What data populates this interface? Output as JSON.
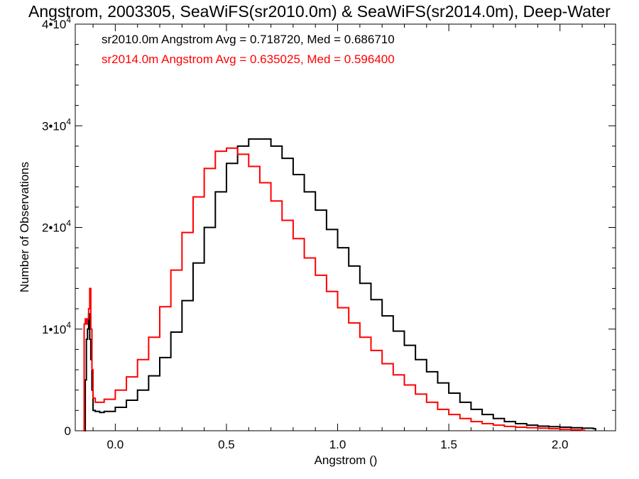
{
  "chart_data": {
    "type": "line",
    "title": "Angstrom, 2003305, SeaWiFS(sr2010.0m) & SeaWiFS(sr2014.0m), Deep-Water",
    "xlabel": "Angstrom ()",
    "ylabel": "Number of Observations",
    "xlim": [
      -0.18,
      2.25
    ],
    "ylim": [
      0,
      40000
    ],
    "x_ticks": [
      {
        "value": 0.0,
        "label": "0.0"
      },
      {
        "value": 0.5,
        "label": "0.5"
      },
      {
        "value": 1.0,
        "label": "1.0"
      },
      {
        "value": 1.5,
        "label": "1.5"
      },
      {
        "value": 2.0,
        "label": "2.0"
      }
    ],
    "y_ticks": [
      {
        "value": 0,
        "mantissa": "0",
        "exponent": ""
      },
      {
        "value": 10000,
        "mantissa": "1•10",
        "exponent": "4"
      },
      {
        "value": 20000,
        "mantissa": "2•10",
        "exponent": "4"
      },
      {
        "value": 30000,
        "mantissa": "3•10",
        "exponent": "4"
      },
      {
        "value": 40000,
        "mantissa": "4•10",
        "exponent": "4"
      }
    ],
    "grid": false,
    "legend_position": "top-left",
    "annotations": [
      {
        "text": "sr2010.0m Angstrom Avg = 0.718720, Med = 0.686710",
        "color": "#000000"
      },
      {
        "text": "sr2014.0m Angstrom Avg = 0.635025, Med = 0.596400",
        "color": "#ff0000"
      }
    ],
    "series": [
      {
        "color": "#000000",
        "points": [
          [
            -0.14,
            0
          ],
          [
            -0.135,
            5000
          ],
          [
            -0.13,
            9000
          ],
          [
            -0.125,
            10000
          ],
          [
            -0.12,
            11500
          ],
          [
            -0.115,
            9000
          ],
          [
            -0.11,
            7000
          ],
          [
            -0.105,
            4000
          ],
          [
            -0.1,
            2000
          ],
          [
            -0.09,
            1900
          ],
          [
            -0.07,
            1800
          ],
          [
            -0.05,
            1900
          ],
          [
            0.0,
            2300
          ],
          [
            0.05,
            3000
          ],
          [
            0.1,
            4000
          ],
          [
            0.15,
            5400
          ],
          [
            0.2,
            7200
          ],
          [
            0.25,
            9700
          ],
          [
            0.3,
            12800
          ],
          [
            0.35,
            16500
          ],
          [
            0.4,
            20000
          ],
          [
            0.45,
            23500
          ],
          [
            0.5,
            26300
          ],
          [
            0.55,
            28000
          ],
          [
            0.6,
            28700
          ],
          [
            0.65,
            28700
          ],
          [
            0.7,
            28000
          ],
          [
            0.75,
            26800
          ],
          [
            0.8,
            25200
          ],
          [
            0.85,
            23500
          ],
          [
            0.9,
            21700
          ],
          [
            0.95,
            19800
          ],
          [
            1.0,
            18000
          ],
          [
            1.05,
            16200
          ],
          [
            1.1,
            14500
          ],
          [
            1.15,
            12900
          ],
          [
            1.2,
            11300
          ],
          [
            1.25,
            9800
          ],
          [
            1.3,
            8400
          ],
          [
            1.35,
            7000
          ],
          [
            1.4,
            5800
          ],
          [
            1.45,
            4700
          ],
          [
            1.5,
            3700
          ],
          [
            1.55,
            2800
          ],
          [
            1.6,
            2100
          ],
          [
            1.65,
            1600
          ],
          [
            1.7,
            1200
          ],
          [
            1.75,
            900
          ],
          [
            1.8,
            700
          ],
          [
            1.85,
            550
          ],
          [
            1.9,
            450
          ],
          [
            1.95,
            400
          ],
          [
            2.0,
            350
          ],
          [
            2.05,
            300
          ],
          [
            2.1,
            250
          ],
          [
            2.15,
            200
          ]
        ]
      },
      {
        "color": "#ff0000",
        "points": [
          [
            -0.145,
            0
          ],
          [
            -0.14,
            10500
          ],
          [
            -0.135,
            11000
          ],
          [
            -0.13,
            10500
          ],
          [
            -0.125,
            11000
          ],
          [
            -0.12,
            12000
          ],
          [
            -0.115,
            14000
          ],
          [
            -0.11,
            10000
          ],
          [
            -0.105,
            6000
          ],
          [
            -0.1,
            3200
          ],
          [
            -0.09,
            2800
          ],
          [
            -0.07,
            2800
          ],
          [
            -0.05,
            3100
          ],
          [
            0.0,
            4000
          ],
          [
            0.05,
            5300
          ],
          [
            0.1,
            7000
          ],
          [
            0.15,
            9200
          ],
          [
            0.2,
            12200
          ],
          [
            0.25,
            15800
          ],
          [
            0.3,
            19500
          ],
          [
            0.35,
            23000
          ],
          [
            0.4,
            25800
          ],
          [
            0.45,
            27500
          ],
          [
            0.5,
            27800
          ],
          [
            0.55,
            27200
          ],
          [
            0.6,
            26000
          ],
          [
            0.65,
            24400
          ],
          [
            0.7,
            22600
          ],
          [
            0.75,
            20700
          ],
          [
            0.8,
            18900
          ],
          [
            0.85,
            17000
          ],
          [
            0.9,
            15300
          ],
          [
            0.95,
            13700
          ],
          [
            1.0,
            12100
          ],
          [
            1.05,
            10600
          ],
          [
            1.1,
            9200
          ],
          [
            1.15,
            7900
          ],
          [
            1.2,
            6600
          ],
          [
            1.25,
            5500
          ],
          [
            1.3,
            4500
          ],
          [
            1.35,
            3600
          ],
          [
            1.4,
            2800
          ],
          [
            1.45,
            2100
          ],
          [
            1.5,
            1600
          ],
          [
            1.55,
            1200
          ],
          [
            1.6,
            900
          ],
          [
            1.65,
            700
          ],
          [
            1.7,
            550
          ],
          [
            1.75,
            430
          ],
          [
            1.8,
            350
          ],
          [
            1.85,
            300
          ],
          [
            1.9,
            250
          ],
          [
            1.95,
            200
          ],
          [
            2.0,
            150
          ],
          [
            2.05,
            100
          ],
          [
            2.1,
            50
          ]
        ]
      }
    ]
  }
}
